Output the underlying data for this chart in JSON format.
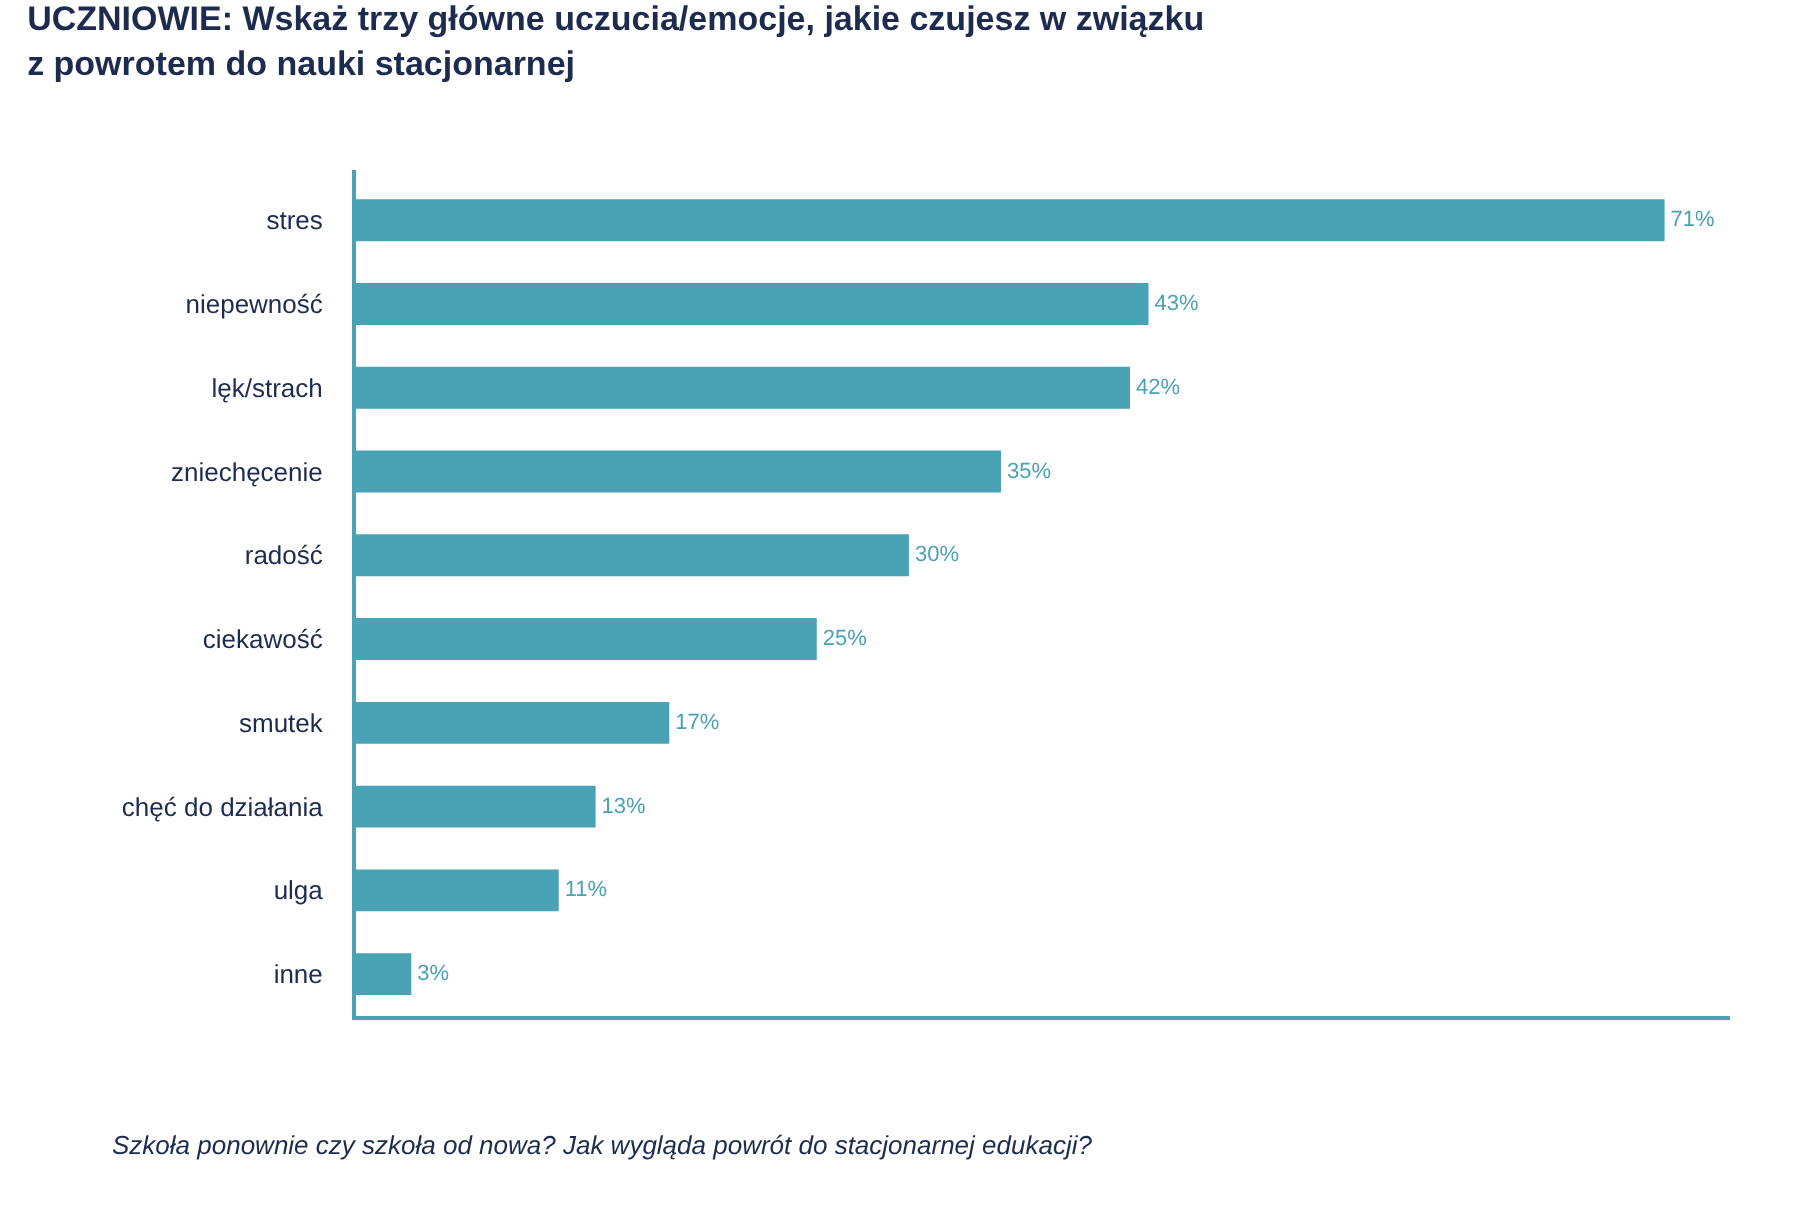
{
  "chart_data": {
    "type": "bar",
    "orientation": "horizontal",
    "title": "UCZNIOWIE: Wskaż trzy główne uczucia/emocje, jakie czujesz w związku\nz powrotem do nauki stacjonarnej",
    "categories": [
      "stres",
      "niepewność",
      "lęk/strach",
      "zniechęcenie",
      "radość",
      "ciekawość",
      "smutek",
      "chęć do działania",
      "ulga",
      "inne"
    ],
    "values": [
      71,
      43,
      42,
      35,
      30,
      25,
      17,
      13,
      11,
      3
    ],
    "value_labels": [
      "71%",
      "43%",
      "42%",
      "35%",
      "30%",
      "25%",
      "17%",
      "13%",
      "11%",
      "3%"
    ],
    "color": "#4aa3b4",
    "annotations": [
      "Szkoła ponownie czy szkoła od nowa? Jak wygląda powrót do stacjonarnej edukacji?"
    ]
  }
}
